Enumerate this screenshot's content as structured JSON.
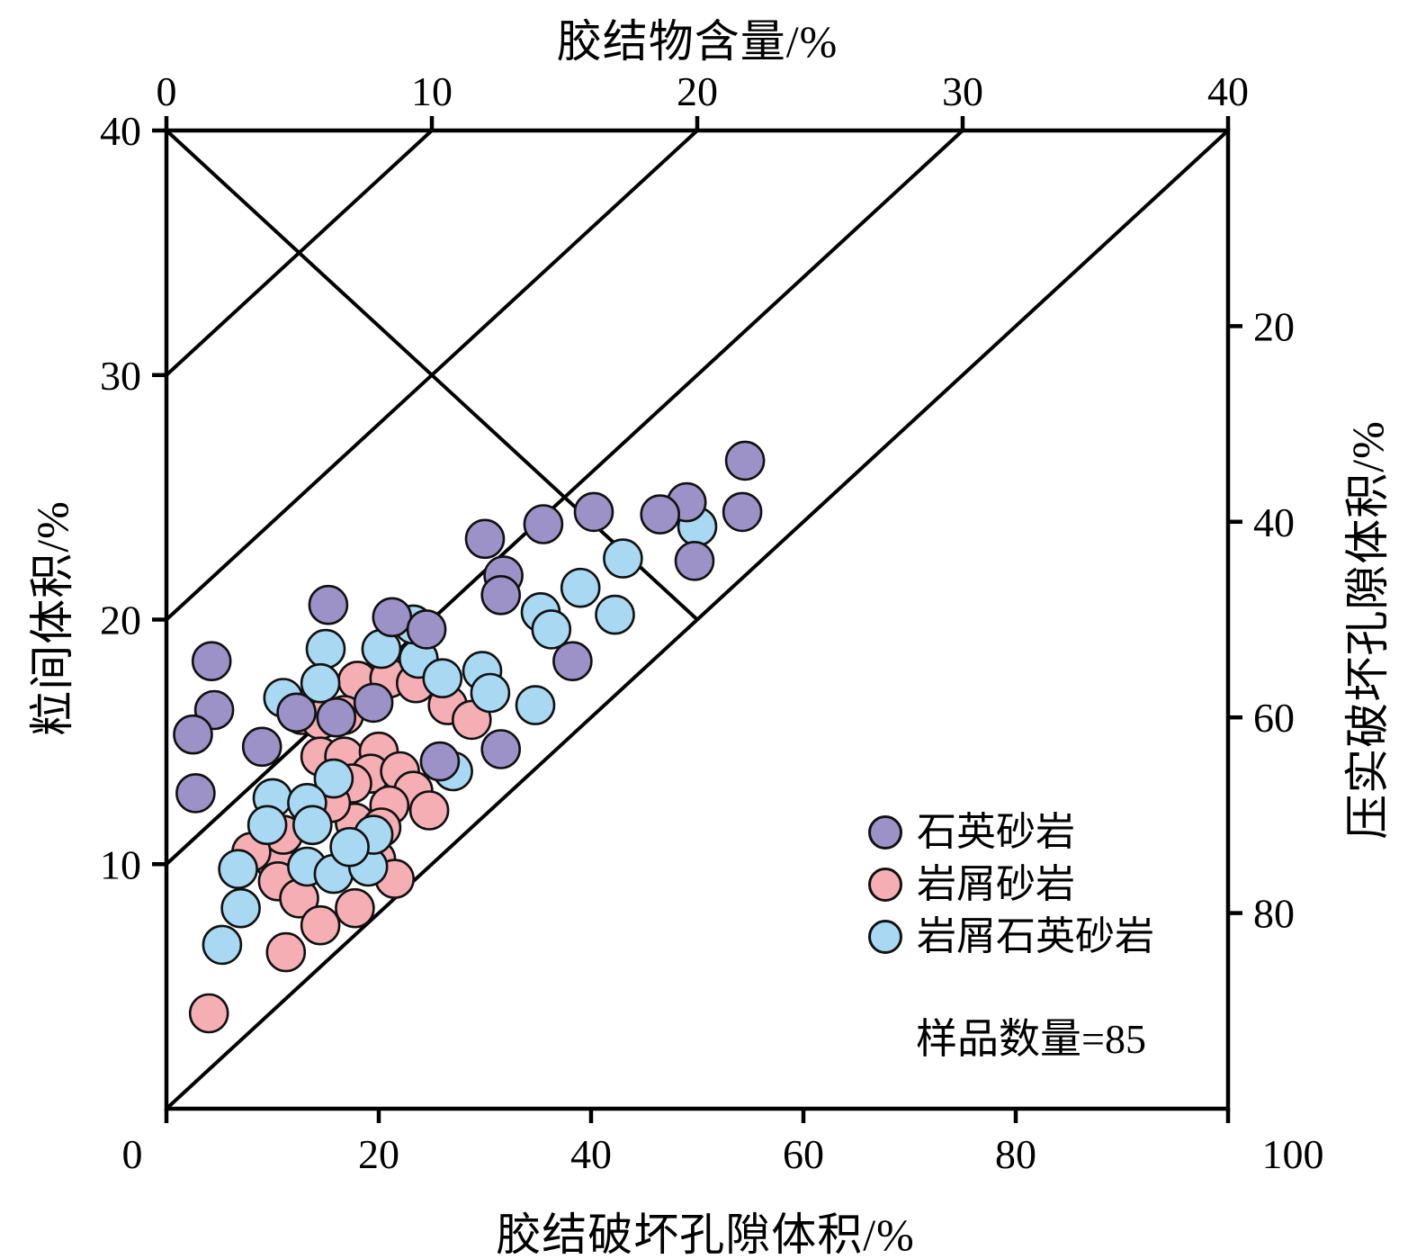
{
  "chart_data": {
    "type": "scatter",
    "description": "Houseknecht-style diagenesis diagram of sandstone intergranular volume vs cement content",
    "axes": {
      "top": {
        "label": "胶结物含量/%",
        "range": [
          0,
          40
        ],
        "ticks": [
          0,
          10,
          20,
          30,
          40
        ]
      },
      "bottom": {
        "label": "胶结破坏孔隙体积/%",
        "range": [
          0,
          100
        ],
        "ticks": [
          0,
          20,
          40,
          60,
          80,
          100
        ]
      },
      "left": {
        "label": "粒间体积/%",
        "range": [
          40,
          0
        ],
        "ticks": [
          40,
          30,
          20,
          10
        ]
      },
      "right": {
        "label": "压实破坏孔隙体积/%",
        "range": [
          0,
          100
        ],
        "ticks": [
          20,
          40,
          60,
          80
        ]
      }
    },
    "grid": false,
    "reference_lines": [
      {
        "name": "cement-porosity-loss-line",
        "from": [
          0,
          40
        ],
        "to": [
          20,
          20
        ]
      },
      {
        "name": "diagonal-igv-equals-cement",
        "from": [
          0,
          0
        ],
        "to": [
          40,
          40
        ]
      },
      {
        "name": "diagonal-igv-cement-plus-10",
        "from": [
          0,
          10
        ],
        "to": [
          30,
          40
        ]
      },
      {
        "name": "diagonal-igv-cement-plus-20",
        "from": [
          0,
          20
        ],
        "to": [
          20,
          40
        ]
      },
      {
        "name": "diagonal-igv-cement-plus-30",
        "from": [
          0,
          30
        ],
        "to": [
          10,
          40
        ]
      }
    ],
    "series": [
      {
        "name": "石英砂岩",
        "color": "#9c92c8",
        "points": [
          [
            21.8,
            26.5
          ],
          [
            19.6,
            24.8
          ],
          [
            21.7,
            24.4
          ],
          [
            18.6,
            24.3
          ],
          [
            16.1,
            24.4
          ],
          [
            14.2,
            23.9
          ],
          [
            19.9,
            22.4
          ],
          [
            12.0,
            23.3
          ],
          [
            12.7,
            21.8
          ],
          [
            12.6,
            21.0
          ],
          [
            8.5,
            20.1
          ],
          [
            6.1,
            20.6
          ],
          [
            9.8,
            19.6
          ],
          [
            15.3,
            18.3
          ],
          [
            1.7,
            18.3
          ],
          [
            1.8,
            16.3
          ],
          [
            1.0,
            15.3
          ],
          [
            1.1,
            12.9
          ],
          [
            4.9,
            16.2
          ],
          [
            6.4,
            16.0
          ],
          [
            7.8,
            16.6
          ],
          [
            3.6,
            14.8
          ],
          [
            10.3,
            14.2
          ],
          [
            12.6,
            14.7
          ]
        ]
      },
      {
        "name": "岩屑砂岩",
        "color": "#f5afb4",
        "points": [
          [
            7.2,
            17.5
          ],
          [
            8.4,
            17.6
          ],
          [
            9.4,
            17.4
          ],
          [
            10.6,
            16.5
          ],
          [
            11.5,
            15.9
          ],
          [
            5.1,
            16.1
          ],
          [
            5.8,
            15.9
          ],
          [
            6.7,
            16.1
          ],
          [
            5.8,
            14.4
          ],
          [
            6.7,
            14.4
          ],
          [
            8.0,
            14.6
          ],
          [
            7.7,
            13.7
          ],
          [
            8.8,
            13.8
          ],
          [
            9.3,
            13.0
          ],
          [
            7.0,
            13.3
          ],
          [
            8.4,
            12.4
          ],
          [
            7.1,
            11.7
          ],
          [
            8.1,
            11.5
          ],
          [
            4.1,
            10.1
          ],
          [
            7.9,
            10.2
          ],
          [
            8.6,
            9.4
          ],
          [
            4.2,
            9.3
          ],
          [
            5.0,
            8.6
          ],
          [
            5.8,
            7.5
          ],
          [
            7.1,
            8.2
          ],
          [
            4.5,
            6.4
          ],
          [
            1.6,
            3.9
          ],
          [
            6.2,
            12.5
          ],
          [
            9.9,
            12.2
          ],
          [
            4.4,
            11.2
          ],
          [
            3.2,
            10.5
          ]
        ]
      },
      {
        "name": "岩屑石英砂岩",
        "color": "#a8d8f2",
        "points": [
          [
            20.0,
            23.8
          ],
          [
            17.2,
            22.5
          ],
          [
            15.6,
            21.3
          ],
          [
            16.9,
            20.2
          ],
          [
            14.1,
            20.3
          ],
          [
            14.5,
            19.6
          ],
          [
            13.9,
            16.5
          ],
          [
            11.9,
            17.9
          ],
          [
            12.2,
            17.0
          ],
          [
            6.0,
            18.8
          ],
          [
            8.1,
            18.8
          ],
          [
            9.5,
            18.4
          ],
          [
            10.4,
            17.6
          ],
          [
            9.3,
            19.8
          ],
          [
            5.8,
            17.4
          ],
          [
            4.4,
            16.8
          ],
          [
            6.3,
            13.5
          ],
          [
            4.0,
            12.7
          ],
          [
            5.3,
            12.5
          ],
          [
            3.8,
            11.6
          ],
          [
            5.5,
            11.6
          ],
          [
            2.7,
            9.8
          ],
          [
            5.3,
            9.9
          ],
          [
            6.3,
            9.6
          ],
          [
            7.6,
            9.9
          ],
          [
            2.8,
            8.2
          ],
          [
            2.1,
            6.7
          ],
          [
            7.8,
            11.2
          ],
          [
            6.9,
            10.7
          ],
          [
            10.8,
            13.8
          ]
        ]
      }
    ],
    "annotation": "样品数量=85",
    "point_count": 85,
    "ink_color": "#000000"
  },
  "legend": {
    "items": [
      {
        "label": "石英砂岩",
        "color": "#9c92c8"
      },
      {
        "label": "岩屑砂岩",
        "color": "#f5afb4"
      },
      {
        "label": "岩屑石英砂岩",
        "color": "#a8d8f2"
      }
    ],
    "sample_note": "样品数量=85"
  },
  "titles": {
    "top": "胶结物含量/%",
    "bottom": "胶结破坏孔隙体积/%",
    "left": "粒间体积/%",
    "right": "压实破坏孔隙体积/%"
  }
}
